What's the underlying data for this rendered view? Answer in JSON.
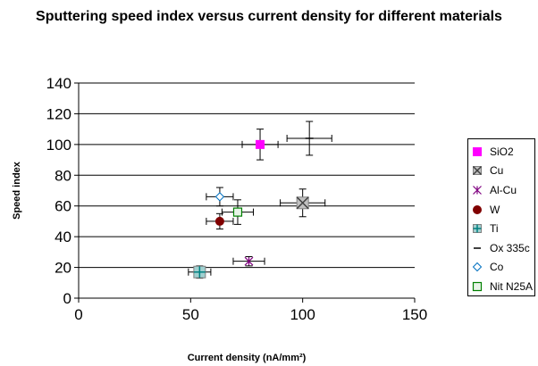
{
  "chart_data": {
    "type": "scatter",
    "title": "Sputtering speed index versus current density for different materials",
    "xlabel": "Current density (nA/mm²)",
    "ylabel": "Speed index",
    "xlim": [
      0,
      150
    ],
    "ylim": [
      0,
      140
    ],
    "xticks": [
      "0",
      "50",
      "100",
      "150"
    ],
    "yticks": [
      "0",
      "20",
      "40",
      "60",
      "80",
      "100",
      "120",
      "140"
    ],
    "grid": "horizontal",
    "legend_position": "right",
    "series": [
      {
        "name": "SiO2",
        "marker": "square",
        "color": "#ff00ff",
        "x": 81,
        "y": 100,
        "xerr": 8,
        "yerr": 10
      },
      {
        "name": "Cu",
        "marker": "x-square",
        "color": "#808080",
        "x": 100,
        "y": 62,
        "xerr": 10,
        "yerr": 9
      },
      {
        "name": "Al-Cu",
        "marker": "asterisk",
        "color": "#800080",
        "x": 76,
        "y": 24,
        "xerr": 7,
        "yerr": 3
      },
      {
        "name": "W",
        "marker": "circle",
        "color": "#800000",
        "x": 63,
        "y": 50,
        "xerr": 6,
        "yerr": 5
      },
      {
        "name": "Ti",
        "marker": "plus-square",
        "color": "#008080",
        "x": 54,
        "y": 17,
        "xerr": 5,
        "yerr": 4
      },
      {
        "name": "Ox 335c",
        "marker": "dash",
        "color": "#000000",
        "x": 103,
        "y": 104,
        "xerr": 10,
        "yerr": 11
      },
      {
        "name": "Co",
        "marker": "diamond",
        "color": "#0070c0",
        "x": 63,
        "y": 66,
        "xerr": 6,
        "yerr": 6
      },
      {
        "name": "Nit N25A",
        "marker": "open-square",
        "color": "#008000",
        "x": 71,
        "y": 56,
        "xerr": 7,
        "yerr": 8
      }
    ]
  }
}
